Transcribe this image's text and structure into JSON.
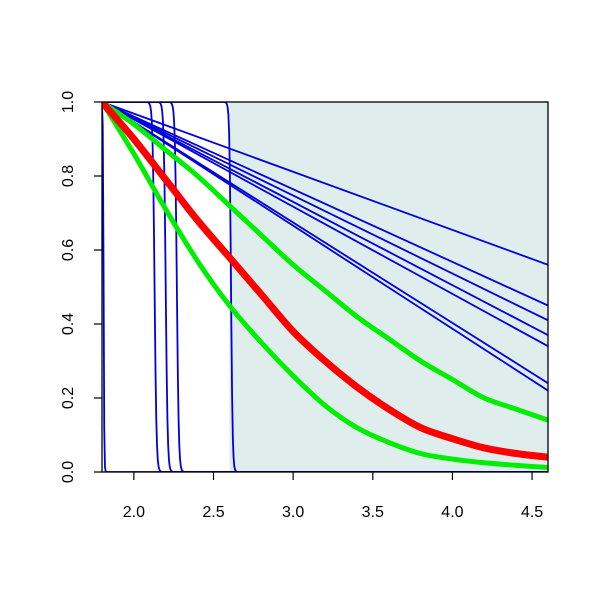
{
  "chart_data": {
    "type": "line",
    "title": "",
    "xlabel": "",
    "ylabel": "",
    "xlim": [
      1.8,
      4.6
    ],
    "ylim": [
      0.0,
      1.0
    ],
    "x_ticks": [
      2.0,
      2.5,
      3.0,
      3.5,
      4.0,
      4.5
    ],
    "x_tick_labels": [
      "2.0",
      "2.5",
      "3.0",
      "3.5",
      "4.0",
      "4.5"
    ],
    "y_ticks": [
      0.0,
      0.2,
      0.4,
      0.6,
      0.8,
      1.0
    ],
    "y_tick_labels": [
      "0.0",
      "0.2",
      "0.4",
      "0.6",
      "0.8",
      "1.0"
    ],
    "grid": false,
    "legend": "none",
    "shaded_region": {
      "x_from": 2.6,
      "x_to": 4.6,
      "color": "#e0eded"
    },
    "colors": {
      "red": "#ff0000",
      "green": "#00ee00",
      "blue": "#0000dd"
    },
    "series": [
      {
        "color": "#ff0000",
        "kind": "smooth",
        "x": [
          1.8,
          2.0,
          2.2,
          2.4,
          2.6,
          2.8,
          3.0,
          3.2,
          3.4,
          3.6,
          3.8,
          4.0,
          4.2,
          4.4,
          4.6
        ],
        "y": [
          1.0,
          0.9,
          0.79,
          0.68,
          0.58,
          0.48,
          0.38,
          0.3,
          0.23,
          0.17,
          0.12,
          0.09,
          0.065,
          0.05,
          0.04
        ]
      },
      {
        "color": "#00ee00",
        "kind": "smooth",
        "x": [
          1.8,
          2.0,
          2.2,
          2.4,
          2.6,
          2.8,
          3.0,
          3.2,
          3.4,
          3.6,
          3.8,
          4.0,
          4.2,
          4.4,
          4.6
        ],
        "y": [
          1.0,
          0.94,
          0.87,
          0.8,
          0.72,
          0.64,
          0.56,
          0.49,
          0.42,
          0.36,
          0.3,
          0.25,
          0.2,
          0.17,
          0.14
        ]
      },
      {
        "color": "#00ee00",
        "kind": "smooth",
        "x": [
          1.8,
          2.0,
          2.2,
          2.4,
          2.6,
          2.8,
          3.0,
          3.2,
          3.4,
          3.6,
          3.8,
          4.0,
          4.2,
          4.4,
          4.6
        ],
        "y": [
          1.0,
          0.86,
          0.71,
          0.57,
          0.45,
          0.35,
          0.26,
          0.18,
          0.12,
          0.08,
          0.05,
          0.035,
          0.025,
          0.018,
          0.012
        ]
      },
      {
        "color": "#0000dd",
        "kind": "linear",
        "x": [
          1.8,
          4.6
        ],
        "y": [
          1.0,
          0.56
        ]
      },
      {
        "color": "#0000dd",
        "kind": "linear",
        "x": [
          1.8,
          4.6
        ],
        "y": [
          1.0,
          0.45
        ]
      },
      {
        "color": "#0000dd",
        "kind": "linear",
        "x": [
          1.8,
          4.6
        ],
        "y": [
          1.0,
          0.41
        ]
      },
      {
        "color": "#0000dd",
        "kind": "linear",
        "x": [
          1.8,
          4.6
        ],
        "y": [
          1.0,
          0.37
        ]
      },
      {
        "color": "#0000dd",
        "kind": "linear",
        "x": [
          1.8,
          4.6
        ],
        "y": [
          1.0,
          0.34
        ]
      },
      {
        "color": "#0000dd",
        "kind": "linear",
        "x": [
          1.8,
          4.6
        ],
        "y": [
          1.0,
          0.24
        ]
      },
      {
        "color": "#0000dd",
        "kind": "linear",
        "x": [
          1.8,
          4.6
        ],
        "y": [
          1.0,
          0.22
        ]
      },
      {
        "color": "#0000dd",
        "kind": "step",
        "x_drop": 1.81,
        "steepness": 0.002
      },
      {
        "color": "#0000dd",
        "kind": "step",
        "x_drop": 2.13,
        "steepness": 0.006
      },
      {
        "color": "#0000dd",
        "kind": "step",
        "x_drop": 2.2,
        "steepness": 0.006
      },
      {
        "color": "#0000dd",
        "kind": "step",
        "x_drop": 2.27,
        "steepness": 0.006
      },
      {
        "color": "#0000dd",
        "kind": "step",
        "x_drop": 2.61,
        "steepness": 0.005
      }
    ]
  }
}
